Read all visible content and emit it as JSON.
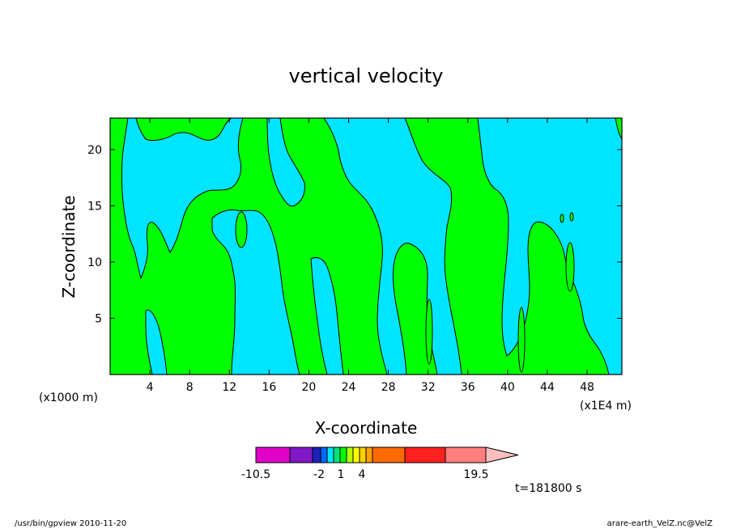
{
  "chart_data": {
    "type": "heatmap",
    "title": "vertical velocity",
    "xlabel": "X-coordinate",
    "ylabel": "Z-coordinate",
    "x_unit_left": "(x1000 m)",
    "x_unit_right": "(x1E4 m)",
    "xlim": [
      0,
      51.5
    ],
    "ylim": [
      0,
      22.8
    ],
    "x_ticks": [
      "4",
      "8",
      "12",
      "16",
      "20",
      "24",
      "28",
      "32",
      "36",
      "40",
      "44",
      "48"
    ],
    "y_ticks": [
      "5",
      "10",
      "15",
      "20"
    ],
    "grid": false,
    "field_regions": [
      {
        "range": "-2 to 1",
        "color": "#00ff00"
      },
      {
        "range": "-3 to -2 (approx.)",
        "color": "#00e5ff"
      }
    ],
    "colorbar": {
      "colors": [
        "#e000c8",
        "#7f18c6",
        "#1c22b8",
        "#0068ff",
        "#00e5ff",
        "#00e27a",
        "#00ff00",
        "#b8ff00",
        "#ffff00",
        "#ffd000",
        "#ffa000",
        "#ff6a00",
        "#ff2020",
        "#ff7f7f",
        "#ffbfbf"
      ],
      "labels": [
        "-10.5",
        "-2",
        "1",
        "4",
        "19.5"
      ],
      "extend": "max"
    },
    "time_label": "t=181800 s"
  },
  "footer": {
    "left": "/usr/bin/gpview   2010-11-20",
    "right": "arare-earth_VelZ.nc@VelZ"
  }
}
